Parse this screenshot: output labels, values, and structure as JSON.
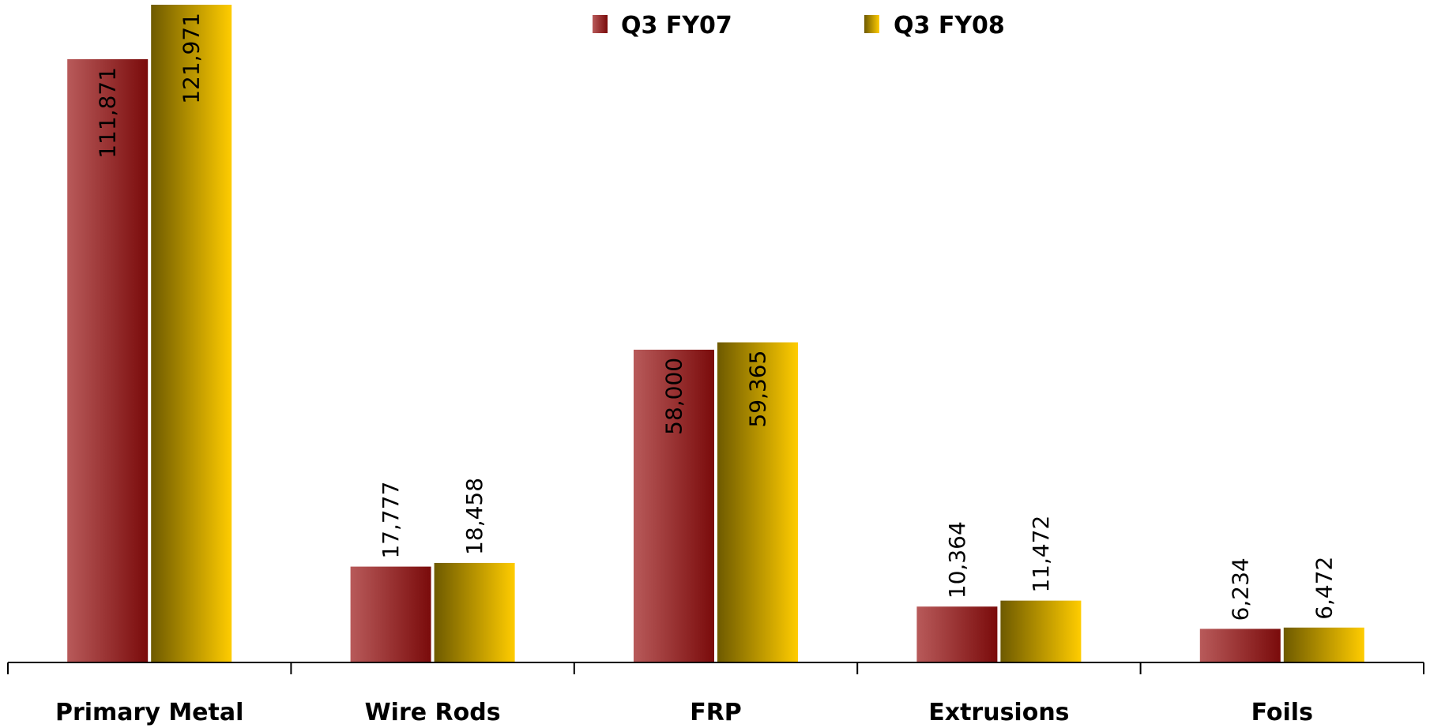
{
  "chart_data": {
    "type": "bar",
    "categories": [
      "Primary Metal",
      "Wire Rods",
      "FRP",
      "Extrusions",
      "Foils"
    ],
    "series": [
      {
        "name": "Q3 FY07",
        "values": [
          111871,
          17777,
          58000,
          10364,
          6234
        ],
        "labels": [
          "111,871",
          "17,777",
          "58,000",
          "10,364",
          "6,234"
        ],
        "color_light": "#b85a5a",
        "color_dark": "#7a0b0b"
      },
      {
        "name": "Q3 FY08",
        "values": [
          121971,
          18458,
          59365,
          11472,
          6472
        ],
        "labels": [
          "121,971",
          "18,458",
          "59,365",
          "11,472",
          "6,472"
        ],
        "color_light": "#6e5a00",
        "color_dark": "#ffcc00"
      }
    ],
    "ylim": [
      0,
      130000
    ],
    "legend_position": "top-center",
    "grid": false
  }
}
